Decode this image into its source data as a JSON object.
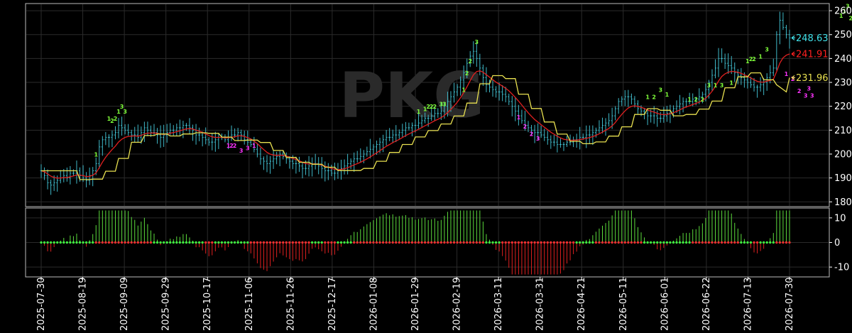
{
  "chart_data": [
    {
      "type": "bar",
      "panel": "price",
      "watermark": "PKG",
      "y_ticks": [
        180,
        190,
        200,
        210,
        220,
        230,
        240,
        250,
        260
      ],
      "ylim": [
        178,
        263
      ],
      "x_tick_labels": [
        "2025-07-30",
        "2025-08-19",
        "2025-09-09",
        "2025-09-29",
        "2025-10-17",
        "2025-11-06",
        "2025-11-26",
        "2025-12-17",
        "2026-01-08",
        "2026-01-29",
        "2026-02-19",
        "2026-03-11",
        "2026-03-31",
        "2026-04-21",
        "2026-05-11",
        "2026-06-01",
        "2026-06-22",
        "2026-07-13",
        "2026-07-30"
      ],
      "grid": true,
      "colors": {
        "bars": "#3fb8c8",
        "red_line": "#e02020",
        "yellow_line": "#e8e050",
        "up_count": "#7fff3a",
        "down_count": "#ff33ff"
      },
      "closes": [
        193,
        191,
        188,
        187,
        188,
        189,
        190,
        191,
        190,
        192,
        192,
        193,
        191,
        190,
        189,
        191,
        193,
        196,
        203,
        206,
        207,
        207,
        208,
        209,
        212,
        211,
        210,
        209,
        208,
        208,
        207,
        209,
        211,
        210,
        209,
        209,
        208,
        207,
        208,
        209,
        210,
        210,
        211,
        211,
        212,
        212,
        211,
        210,
        208,
        208,
        207,
        206,
        205,
        205,
        206,
        207,
        207,
        206,
        207,
        208,
        208,
        209,
        208,
        206,
        205,
        204,
        202,
        200,
        198,
        197,
        196,
        197,
        198,
        199,
        200,
        199,
        198,
        197,
        196,
        196,
        195,
        194,
        194,
        195,
        196,
        196,
        195,
        194,
        193,
        193,
        192,
        192,
        193,
        194,
        195,
        196,
        197,
        198,
        198,
        199,
        200,
        201,
        202,
        203,
        204,
        205,
        206,
        207,
        207,
        208,
        208,
        209,
        210,
        211,
        211,
        212,
        212,
        213,
        214,
        215,
        215,
        216,
        217,
        217,
        218,
        220,
        222,
        224,
        226,
        228,
        231,
        234,
        238,
        241,
        243,
        240,
        236,
        232,
        229,
        228,
        227,
        226,
        226,
        225,
        224,
        222,
        220,
        218,
        216,
        214,
        212,
        211,
        210,
        209,
        209,
        208,
        207,
        206,
        205,
        205,
        204,
        204,
        204,
        205,
        205,
        206,
        206,
        207,
        207,
        208,
        208,
        209,
        210,
        211,
        212,
        213,
        214,
        216,
        219,
        222,
        223,
        224,
        224,
        223,
        221,
        219,
        218,
        217,
        216,
        216,
        216,
        215,
        215,
        216,
        217,
        218,
        219,
        220,
        221,
        222,
        222,
        222,
        223,
        223,
        224,
        225,
        227,
        230,
        233,
        236,
        240,
        240,
        238,
        237,
        236,
        234,
        233,
        232,
        231,
        230,
        229,
        228,
        228,
        229,
        230,
        232,
        234,
        236,
        250,
        256,
        253,
        250,
        248.63
      ],
      "red_line_last": 241.91,
      "yellow_line_last": 231.96,
      "last_close": 248.63,
      "price_tags": [
        {
          "value": 248.63,
          "text": "248.63",
          "color": "#40e0e8"
        },
        {
          "value": 241.91,
          "text": "241.91",
          "color": "#ff2020"
        },
        {
          "value": 231.96,
          "text": "231.96",
          "color": "#e8e050"
        }
      ],
      "count_labels": [
        {
          "i": 17,
          "price": 199,
          "text": "1",
          "dir": "up"
        },
        {
          "i": 21,
          "price": 214,
          "text": "1",
          "dir": "up"
        },
        {
          "i": 22,
          "price": 213,
          "text": "2",
          "dir": "up"
        },
        {
          "i": 23,
          "price": 214,
          "text": "2",
          "dir": "up"
        },
        {
          "i": 24,
          "price": 217,
          "text": "1",
          "dir": "up"
        },
        {
          "i": 25,
          "price": 219,
          "text": "3",
          "dir": "up"
        },
        {
          "i": 26,
          "price": 217,
          "text": "3",
          "dir": "up"
        },
        {
          "i": 58,
          "price": 205,
          "text": "1",
          "dir": "down"
        },
        {
          "i": 59,
          "price": 205,
          "text": "2",
          "dir": "down"
        },
        {
          "i": 60,
          "price": 205,
          "text": "2",
          "dir": "down"
        },
        {
          "i": 62,
          "price": 203,
          "text": "3",
          "dir": "down"
        },
        {
          "i": 64,
          "price": 204,
          "text": "3",
          "dir": "down"
        },
        {
          "i": 66,
          "price": 205,
          "text": "1",
          "dir": "down"
        },
        {
          "i": 117,
          "price": 217,
          "text": "1",
          "dir": "up"
        },
        {
          "i": 119,
          "price": 218,
          "text": "1",
          "dir": "up"
        },
        {
          "i": 120,
          "price": 219,
          "text": "2",
          "dir": "up"
        },
        {
          "i": 121,
          "price": 219,
          "text": "2",
          "dir": "up"
        },
        {
          "i": 122,
          "price": 219,
          "text": "2",
          "dir": "up"
        },
        {
          "i": 124,
          "price": 220,
          "text": "3",
          "dir": "up"
        },
        {
          "i": 125,
          "price": 220,
          "text": "3",
          "dir": "up"
        },
        {
          "i": 131,
          "price": 226,
          "text": "1",
          "dir": "up"
        },
        {
          "i": 132,
          "price": 233,
          "text": "2",
          "dir": "up"
        },
        {
          "i": 133,
          "price": 238,
          "text": "2",
          "dir": "up"
        },
        {
          "i": 135,
          "price": 246,
          "text": "3",
          "dir": "up"
        },
        {
          "i": 148,
          "price": 217,
          "text": "1",
          "dir": "down"
        },
        {
          "i": 150,
          "price": 213,
          "text": "2",
          "dir": "down"
        },
        {
          "i": 152,
          "price": 210,
          "text": "2",
          "dir": "down"
        },
        {
          "i": 154,
          "price": 208,
          "text": "3",
          "dir": "down"
        },
        {
          "i": 188,
          "price": 223,
          "text": "1",
          "dir": "up"
        },
        {
          "i": 190,
          "price": 223,
          "text": "2",
          "dir": "up"
        },
        {
          "i": 192,
          "price": 226,
          "text": "3",
          "dir": "up"
        },
        {
          "i": 194,
          "price": 224,
          "text": "1",
          "dir": "up"
        },
        {
          "i": 201,
          "price": 222,
          "text": "1",
          "dir": "up"
        },
        {
          "i": 203,
          "price": 222,
          "text": "2",
          "dir": "up"
        },
        {
          "i": 205,
          "price": 222,
          "text": "2",
          "dir": "up"
        },
        {
          "i": 207,
          "price": 228,
          "text": "3",
          "dir": "up"
        },
        {
          "i": 209,
          "price": 228,
          "text": "1",
          "dir": "up"
        },
        {
          "i": 211,
          "price": 228,
          "text": "3",
          "dir": "up"
        },
        {
          "i": 214,
          "price": 229,
          "text": "1",
          "dir": "up"
        },
        {
          "i": 219,
          "price": 238,
          "text": "1",
          "dir": "up"
        },
        {
          "i": 220,
          "price": 239,
          "text": "2",
          "dir": "up"
        },
        {
          "i": 221,
          "price": 239,
          "text": "2",
          "dir": "up"
        },
        {
          "i": 223,
          "price": 240,
          "text": "1",
          "dir": "up"
        },
        {
          "i": 225,
          "price": 243,
          "text": "3",
          "dir": "up"
        },
        {
          "i": 231,
          "price": 235,
          "text": "1",
          "dir": "down"
        },
        {
          "i": 233,
          "price": 233,
          "text": "2",
          "dir": "down"
        },
        {
          "i": 235,
          "price": 228,
          "text": "2",
          "dir": "down"
        },
        {
          "i": 237,
          "price": 226,
          "text": "3",
          "dir": "down"
        },
        {
          "i": 238,
          "price": 229,
          "text": "3",
          "dir": "down"
        },
        {
          "i": 239,
          "price": 226,
          "text": "3",
          "dir": "down"
        },
        {
          "i": 248,
          "price": 257,
          "text": "1",
          "dir": "up"
        },
        {
          "i": 249,
          "price": 259,
          "text": "1",
          "dir": "up"
        },
        {
          "i": 250,
          "price": 261,
          "text": "3",
          "dir": "up"
        },
        {
          "i": 251,
          "price": 256,
          "text": "2",
          "dir": "up"
        },
        {
          "i": 252,
          "price": 255,
          "text": "2",
          "dir": "up"
        }
      ]
    },
    {
      "type": "bar",
      "panel": "oscillator",
      "y_ticks": [
        -10,
        0,
        10
      ],
      "ylim": [
        -14,
        14
      ],
      "colors": {
        "positive": "#5cdc3c",
        "negative": "#e02020",
        "dot_green": "#40ff40",
        "dot_red": "#ff3030"
      }
    }
  ]
}
